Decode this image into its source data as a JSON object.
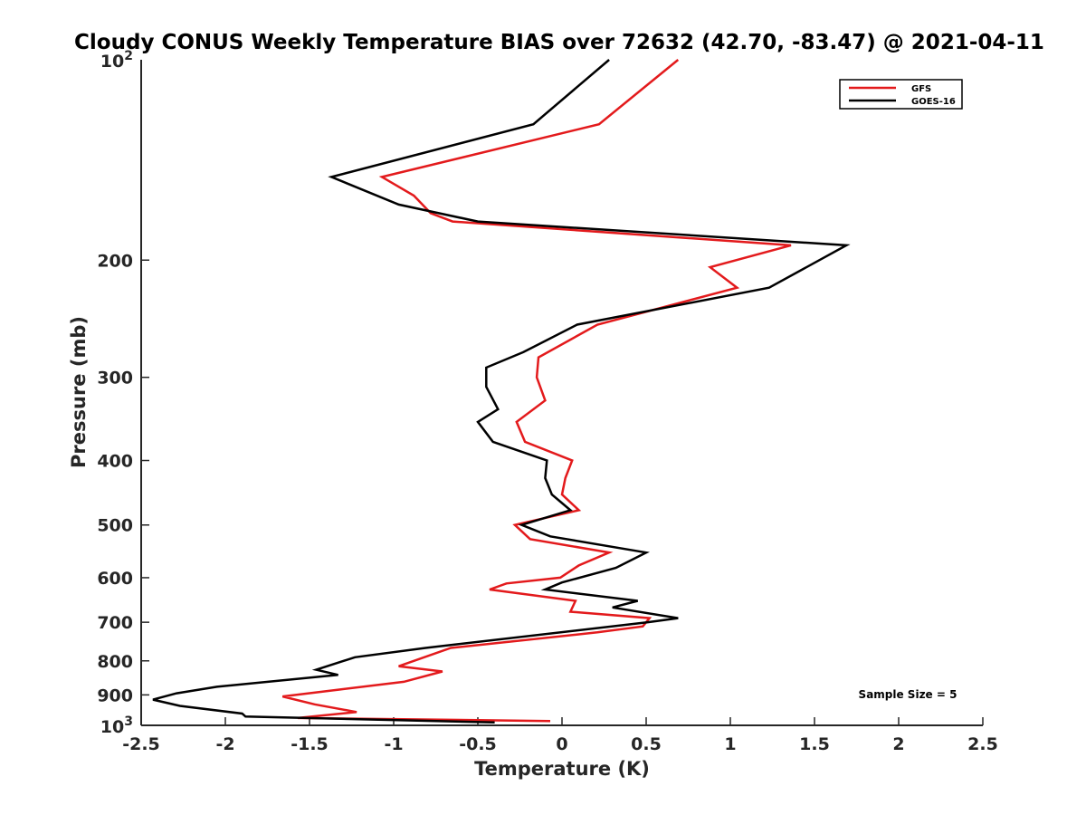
{
  "chart_data": {
    "type": "line",
    "title": "Cloudy CONUS Weekly Temperature BIAS over 72632 (42.70, -83.47) @ 2021-04-11",
    "xlabel": "Temperature (K)",
    "ylabel": "Pressure (mb)",
    "xlim": [
      -2.5,
      2.5
    ],
    "ylim": [
      100,
      1000
    ],
    "y_scale": "log",
    "y_reversed": true,
    "x_ticks": [
      -2.5,
      -2,
      -1.5,
      -1,
      -0.5,
      0,
      0.5,
      1,
      1.5,
      2,
      2.5
    ],
    "x_tick_labels": [
      "-2.5",
      "-2",
      "-1.5",
      "-1",
      "-0.5",
      "0",
      "0.5",
      "1",
      "1.5",
      "2",
      "2.5"
    ],
    "y_ticks": [
      200,
      300,
      400,
      500,
      600,
      700,
      800,
      900
    ],
    "y_tick_labels": [
      "200",
      "300",
      "400",
      "500",
      "600",
      "700",
      "800",
      "900"
    ],
    "y_edge_ticks": [
      {
        "value": 100,
        "base": "10",
        "exp": "2"
      },
      {
        "value": 1000,
        "base": "10",
        "exp": "3"
      }
    ],
    "grid": false,
    "legend_position": "top-right",
    "annotation": "Sample Size = 5",
    "series": [
      {
        "name": "GFS",
        "color": "#e31a1c",
        "points": [
          [
            0.69,
            100
          ],
          [
            0.22,
            125
          ],
          [
            -1.07,
            150
          ],
          [
            -0.88,
            160
          ],
          [
            -0.78,
            170
          ],
          [
            -0.65,
            175
          ],
          [
            1.36,
            190
          ],
          [
            0.88,
            205
          ],
          [
            1.04,
            220
          ],
          [
            0.21,
            250
          ],
          [
            -0.14,
            280
          ],
          [
            -0.15,
            300
          ],
          [
            -0.1,
            325
          ],
          [
            -0.27,
            350
          ],
          [
            -0.22,
            375
          ],
          [
            0.06,
            400
          ],
          [
            0.02,
            425
          ],
          [
            0.0,
            450
          ],
          [
            0.1,
            475
          ],
          [
            -0.28,
            500
          ],
          [
            -0.19,
            525
          ],
          [
            0.28,
            550
          ],
          [
            0.1,
            575
          ],
          [
            -0.01,
            600
          ],
          [
            -0.33,
            612
          ],
          [
            -0.43,
            625
          ],
          [
            0.08,
            650
          ],
          [
            0.05,
            675
          ],
          [
            0.52,
            690
          ],
          [
            0.48,
            710
          ],
          [
            0.21,
            725
          ],
          [
            -0.66,
            765
          ],
          [
            -0.97,
            815
          ],
          [
            -0.71,
            830
          ],
          [
            -0.94,
            860
          ],
          [
            -1.66,
            905
          ],
          [
            -1.47,
            930
          ],
          [
            -1.22,
            955
          ],
          [
            -1.57,
            975
          ],
          [
            -0.07,
            985
          ]
        ]
      },
      {
        "name": "GOES-16",
        "color": "#000000",
        "points": [
          [
            0.28,
            100
          ],
          [
            -0.17,
            125
          ],
          [
            -1.37,
            150
          ],
          [
            -0.97,
            165
          ],
          [
            -0.5,
            175
          ],
          [
            1.69,
            190
          ],
          [
            1.23,
            220
          ],
          [
            0.09,
            250
          ],
          [
            -0.23,
            275
          ],
          [
            -0.45,
            290
          ],
          [
            -0.45,
            310
          ],
          [
            -0.38,
            335
          ],
          [
            -0.5,
            350
          ],
          [
            -0.41,
            375
          ],
          [
            -0.09,
            400
          ],
          [
            -0.1,
            425
          ],
          [
            -0.06,
            450
          ],
          [
            0.05,
            475
          ],
          [
            -0.24,
            500
          ],
          [
            -0.07,
            520
          ],
          [
            0.5,
            550
          ],
          [
            0.32,
            580
          ],
          [
            0.0,
            610
          ],
          [
            -0.1,
            625
          ],
          [
            0.45,
            650
          ],
          [
            0.3,
            665
          ],
          [
            0.69,
            690
          ],
          [
            0.51,
            700
          ],
          [
            -0.81,
            765
          ],
          [
            -1.23,
            790
          ],
          [
            -1.46,
            825
          ],
          [
            -1.33,
            840
          ],
          [
            -2.05,
            875
          ],
          [
            -2.29,
            895
          ],
          [
            -2.43,
            915
          ],
          [
            -2.27,
            935
          ],
          [
            -1.9,
            960
          ],
          [
            -1.88,
            970
          ],
          [
            -0.4,
            990
          ]
        ]
      }
    ]
  }
}
